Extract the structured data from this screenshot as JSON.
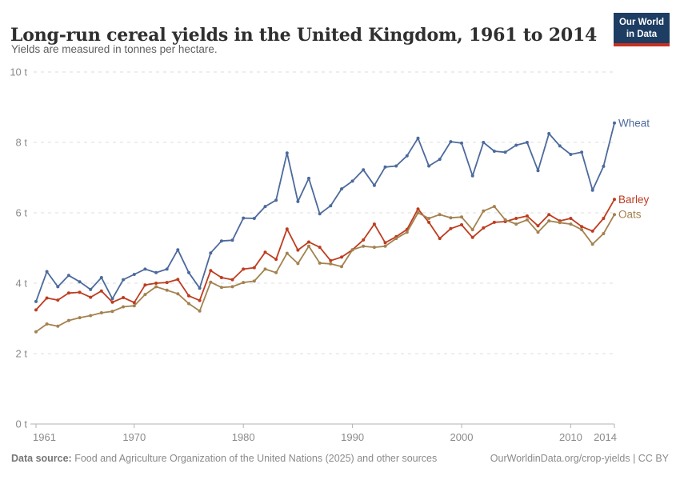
{
  "header": {
    "title": "Long-run cereal yields in the United Kingdom, 1961 to 2014",
    "subtitle": "Yields are measured in tonnes per hectare.",
    "logo": {
      "line1": "Our World",
      "line2": "in Data",
      "bg_color": "#1d3d63",
      "accent_color": "#c9301f"
    }
  },
  "footer": {
    "datasource_label": "Data source:",
    "datasource_text": " Food and Agriculture Organization of the United Nations (2025) and other sources",
    "link_text": "OurWorldinData.org/crop-yields | CC BY"
  },
  "chart_data": {
    "type": "line",
    "title": "Long-run cereal yields in the United Kingdom, 1961 to 2014",
    "subtitle": "Yields are measured in tonnes per hectare.",
    "unit": "t",
    "xlabel": "",
    "ylabel": "tonnes per hectare",
    "x_range": [
      1961,
      2014
    ],
    "ylim": [
      0,
      10
    ],
    "grid": "horizontal-dashed",
    "legend_position": "end-of-line-labels",
    "y_ticks": [
      {
        "value": 0,
        "label": "0 t"
      },
      {
        "value": 2,
        "label": "2 t"
      },
      {
        "value": 4,
        "label": "4 t"
      },
      {
        "value": 6,
        "label": "6 t"
      },
      {
        "value": 8,
        "label": "8 t"
      },
      {
        "value": 10,
        "label": "10 t"
      }
    ],
    "x_ticks": [
      1961,
      1970,
      1980,
      1990,
      2000,
      2010,
      2014
    ],
    "x": [
      1961,
      1962,
      1963,
      1964,
      1965,
      1966,
      1967,
      1968,
      1969,
      1970,
      1971,
      1972,
      1973,
      1974,
      1975,
      1976,
      1977,
      1978,
      1979,
      1980,
      1981,
      1982,
      1983,
      1984,
      1985,
      1986,
      1987,
      1988,
      1989,
      1990,
      1991,
      1992,
      1993,
      1994,
      1995,
      1996,
      1997,
      1998,
      1999,
      2000,
      2001,
      2002,
      2003,
      2004,
      2005,
      2006,
      2007,
      2008,
      2009,
      2010,
      2011,
      2012,
      2013,
      2014
    ],
    "series": [
      {
        "name": "Wheat",
        "color": "#4C6A9C",
        "values": [
          3.48,
          4.33,
          3.9,
          4.22,
          4.04,
          3.82,
          4.16,
          3.56,
          4.1,
          4.25,
          4.4,
          4.3,
          4.4,
          4.95,
          4.3,
          3.86,
          4.86,
          5.2,
          5.22,
          5.85,
          5.84,
          6.18,
          6.36,
          7.7,
          6.32,
          6.98,
          5.97,
          6.2,
          6.68,
          6.9,
          7.22,
          6.78,
          7.3,
          7.33,
          7.62,
          8.12,
          7.33,
          7.52,
          8.02,
          7.98,
          7.05,
          8.0,
          7.75,
          7.72,
          7.92,
          8.0,
          7.2,
          8.25,
          7.9,
          7.66,
          7.72,
          6.64,
          7.32,
          8.55
        ]
      },
      {
        "name": "Barley",
        "color": "#BE3C20",
        "values": [
          3.24,
          3.58,
          3.52,
          3.72,
          3.74,
          3.6,
          3.78,
          3.46,
          3.59,
          3.45,
          3.95,
          4.0,
          4.02,
          4.11,
          3.64,
          3.51,
          4.36,
          4.16,
          4.1,
          4.4,
          4.44,
          4.88,
          4.68,
          5.54,
          4.94,
          5.17,
          5.02,
          4.64,
          4.74,
          4.95,
          5.23,
          5.68,
          5.15,
          5.32,
          5.53,
          6.11,
          5.73,
          5.27,
          5.55,
          5.66,
          5.3,
          5.57,
          5.73,
          5.75,
          5.84,
          5.91,
          5.63,
          5.95,
          5.77,
          5.84,
          5.61,
          5.48,
          5.84,
          6.38
        ]
      },
      {
        "name": "Oats",
        "color": "#A3824F",
        "values": [
          2.62,
          2.84,
          2.78,
          2.94,
          3.02,
          3.08,
          3.16,
          3.2,
          3.33,
          3.36,
          3.68,
          3.9,
          3.8,
          3.7,
          3.42,
          3.21,
          4.03,
          3.88,
          3.9,
          4.02,
          4.06,
          4.4,
          4.3,
          4.85,
          4.56,
          5.05,
          4.57,
          4.55,
          4.47,
          4.95,
          5.05,
          5.02,
          5.05,
          5.27,
          5.45,
          6.0,
          5.84,
          5.95,
          5.86,
          5.88,
          5.52,
          6.05,
          6.18,
          5.8,
          5.68,
          5.8,
          5.45,
          5.77,
          5.72,
          5.68,
          5.52,
          5.11,
          5.41,
          5.95
        ]
      }
    ],
    "style": {
      "grid_color": "#dddddd",
      "axis_color": "#b3b3b3",
      "tick_label_color": "#8b8b8b"
    }
  }
}
